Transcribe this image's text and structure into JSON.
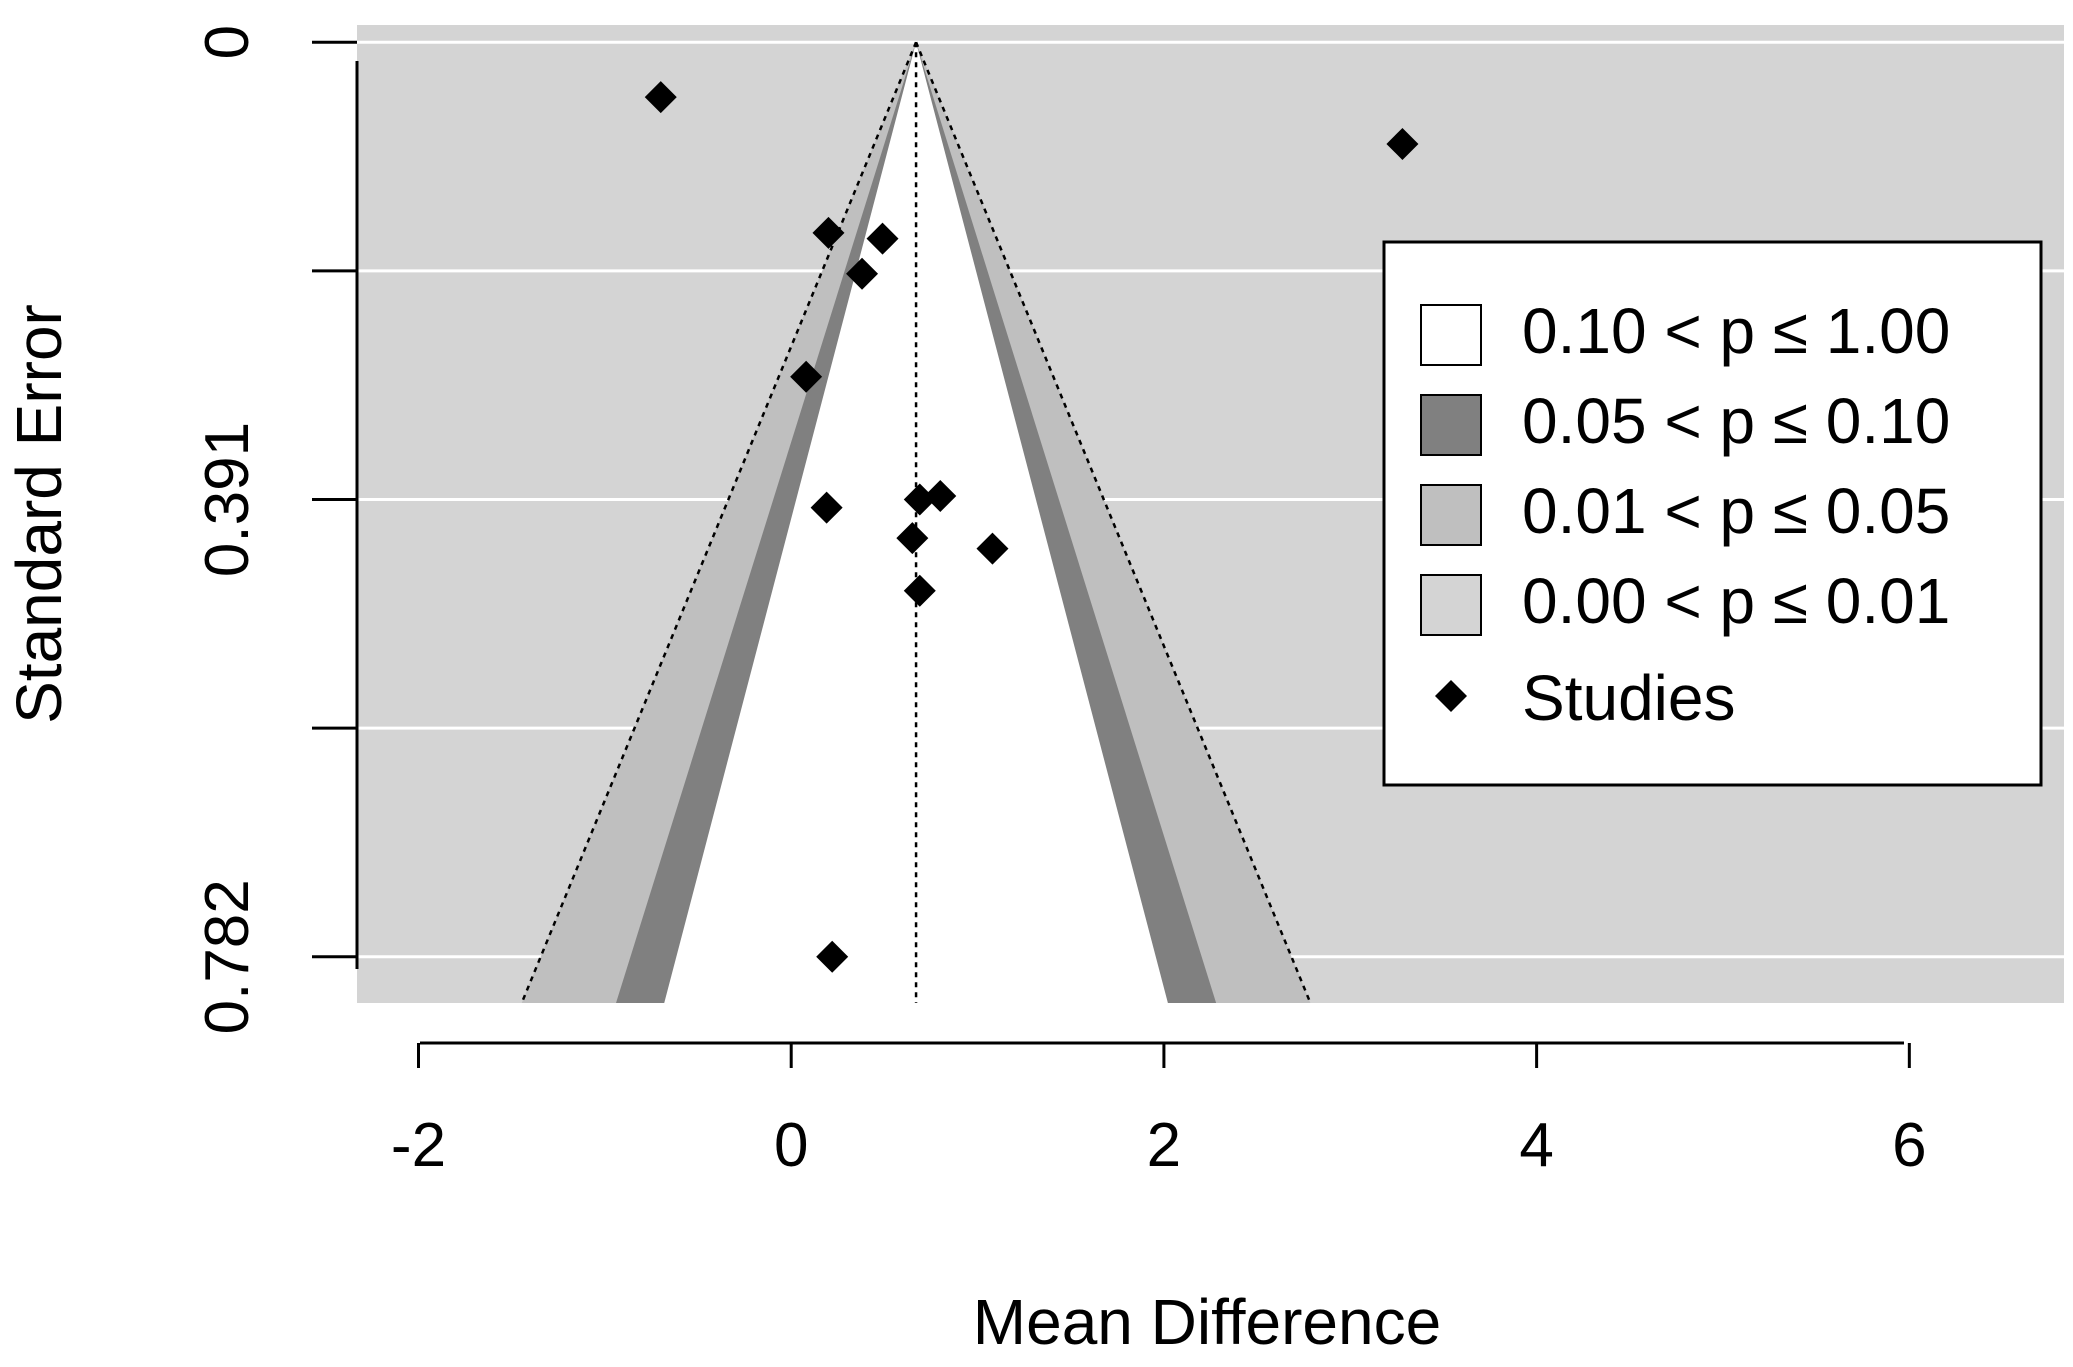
{
  "chart_data": {
    "type": "scatter",
    "subtype": "contour-enhanced funnel plot",
    "title": "",
    "xlabel": "Mean Difference",
    "ylabel": "Standard Error",
    "xlim": [
      -2.33,
      6.83
    ],
    "ylim": [
      0.8215,
      -0.0147
    ],
    "x_ticks": [
      -2,
      0,
      2,
      4,
      6
    ],
    "x_tick_labels": [
      "-2",
      "0",
      "2",
      "4",
      "6"
    ],
    "y_ticks": [
      0,
      0.391,
      0.782
    ],
    "y_tick_labels": [
      "0",
      "0.391",
      "0.782"
    ],
    "y_grid": [
      0,
      0.1955,
      0.391,
      0.5865,
      0.782
    ],
    "reference_line": 0.67,
    "background_color": "#d4d4d4",
    "contours": [
      {
        "label": "0.00 < p ≤ 0.01",
        "z": null,
        "color": "#d4d4d4"
      },
      {
        "label": "0.01 < p ≤ 0.05",
        "z": 2.576,
        "color": "#bfbfbf"
      },
      {
        "label": "0.05 < p ≤ 0.10",
        "z": 1.96,
        "color": "#808080"
      },
      {
        "label": "0.10 < p ≤ 1.00",
        "z": 1.645,
        "color": "#ffffff"
      }
    ],
    "legend_order": [
      3,
      2,
      1,
      0
    ],
    "studies_label": "Studies",
    "series": [
      {
        "name": "Studies",
        "points": [
          {
            "x": -0.7,
            "y": 0.047
          },
          {
            "x": 3.28,
            "y": 0.087
          },
          {
            "x": 0.2,
            "y": 0.163
          },
          {
            "x": 0.49,
            "y": 0.168
          },
          {
            "x": 0.38,
            "y": 0.198
          },
          {
            "x": 0.08,
            "y": 0.286
          },
          {
            "x": 0.69,
            "y": 0.391
          },
          {
            "x": 0.8,
            "y": 0.388
          },
          {
            "x": 0.19,
            "y": 0.398
          },
          {
            "x": 0.65,
            "y": 0.424
          },
          {
            "x": 1.08,
            "y": 0.433
          },
          {
            "x": 0.69,
            "y": 0.469
          },
          {
            "x": 0.22,
            "y": 0.782
          }
        ]
      }
    ],
    "legend_position": "right"
  }
}
